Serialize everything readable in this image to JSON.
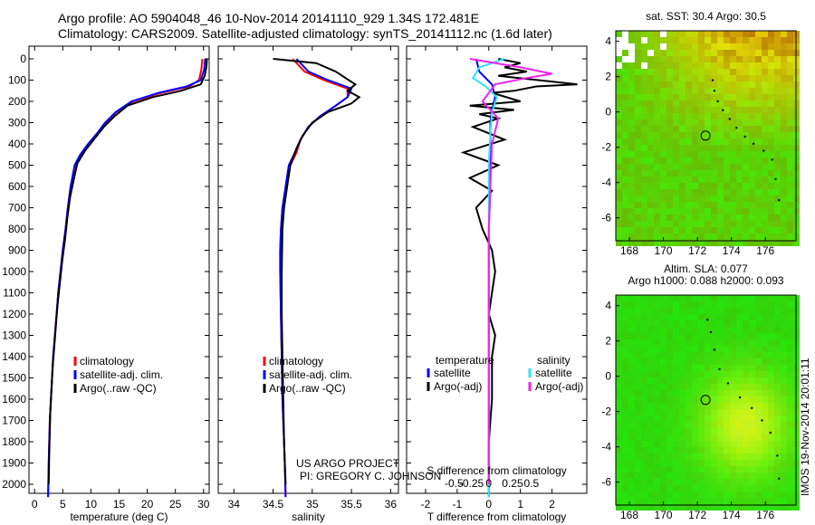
{
  "header": {
    "line1": "Argo profile: AO 5904048_46 10-Nov-2014 20141110_929 1.34S 172.481E",
    "line2": "Climatology: CARS2009. Satellite-adjusted climatology: synTS_20141112.nc (1.6d later)"
  },
  "footer": {
    "project": "US ARGO PROJECT",
    "pi": "PI: GREGORY C. JOHNSON",
    "timestamp": "IMOS 19-Nov-2014 20:01:11"
  },
  "colors": {
    "climatology": "#ff0000",
    "satellite": "#0000ff",
    "argo": "#000000",
    "sal_satellite": "#33e0ff",
    "sal_argo": "#ee22ee"
  },
  "chart_data": [
    {
      "type": "line",
      "id": "temperature",
      "xlabel": "temperature (deg C)",
      "ylabel": "",
      "xlim": [
        -1,
        31
      ],
      "ylim": [
        2080,
        0
      ],
      "xticks": [
        0,
        5,
        10,
        15,
        20,
        25,
        30
      ],
      "yticks": [
        0,
        100,
        200,
        300,
        400,
        500,
        600,
        700,
        800,
        900,
        1000,
        1100,
        1200,
        1300,
        1400,
        1500,
        1600,
        1700,
        1800,
        1900,
        2000
      ],
      "legend": [
        "climatology",
        "satellite-adj. clim.",
        "Argo(..raw -QC)"
      ],
      "legend_position": "lower-left",
      "series": [
        {
          "name": "climatology",
          "color": "#ff0000",
          "x": [
            29.8,
            29.6,
            29.2,
            27.5,
            22.5,
            17.5,
            14.5,
            12.6,
            11.2,
            9.6,
            8.2,
            7.2,
            6.4,
            5.9,
            5.5,
            5.0,
            4.6,
            4.2,
            3.9,
            3.6,
            3.3,
            3.1,
            2.9,
            2.7,
            2.6,
            2.5,
            2.4
          ],
          "y": [
            0,
            50,
            100,
            130,
            160,
            200,
            250,
            300,
            350,
            400,
            450,
            500,
            600,
            700,
            800,
            900,
            1000,
            1100,
            1200,
            1300,
            1400,
            1500,
            1600,
            1700,
            1800,
            1900,
            2060
          ]
        },
        {
          "name": "satellite-adj. clim.",
          "color": "#0000ff",
          "x": [
            30.3,
            30.1,
            29.5,
            27.0,
            22.0,
            17.2,
            14.4,
            12.5,
            11.1,
            9.5,
            8.1,
            7.1,
            6.4,
            5.9,
            5.5,
            5.0,
            4.6,
            4.2,
            3.9,
            3.6,
            3.3,
            3.1,
            2.9,
            2.7,
            2.6,
            2.5,
            2.4
          ],
          "y": [
            0,
            50,
            100,
            130,
            160,
            200,
            250,
            300,
            350,
            400,
            450,
            500,
            600,
            700,
            800,
            900,
            1000,
            1100,
            1200,
            1300,
            1400,
            1500,
            1600,
            1700,
            1800,
            1900,
            2060
          ]
        },
        {
          "name": "Argo(..raw -QC)",
          "color": "#000000",
          "x": [
            30.6,
            30.5,
            30.2,
            29.5,
            26.0,
            21.0,
            16.5,
            14.2,
            12.3,
            10.8,
            9.0,
            7.6,
            7.0,
            6.3,
            5.8,
            5.4,
            4.9,
            4.5,
            4.1,
            3.8,
            3.5,
            3.2,
            3.0,
            2.8,
            2.7,
            2.6,
            2.5
          ],
          "y": [
            0,
            40,
            80,
            120,
            150,
            180,
            220,
            270,
            320,
            370,
            430,
            490,
            560,
            650,
            750,
            850,
            950,
            1050,
            1150,
            1250,
            1350,
            1450,
            1550,
            1650,
            1750,
            1850,
            2000
          ]
        }
      ]
    },
    {
      "type": "line",
      "id": "salinity",
      "xlabel": "salinity",
      "xlim": [
        33.8,
        36.1
      ],
      "ylim": [
        2080,
        0
      ],
      "xticks": [
        34,
        34.5,
        35,
        35.5,
        36
      ],
      "xtick_labels": [
        "34",
        "34.5",
        "35",
        "35.5",
        "36"
      ],
      "legend": [
        "climatology",
        "satellite-adj. clim.",
        "Argo(..raw -QC)"
      ],
      "legend_position": "lower-left",
      "series": [
        {
          "name": "climatology",
          "color": "#ff0000",
          "x": [
            34.75,
            34.9,
            35.15,
            35.45,
            35.45,
            35.3,
            35.1,
            34.95,
            34.85,
            34.8,
            34.72,
            34.67,
            34.62,
            34.6,
            34.59,
            34.59,
            34.6,
            34.61,
            34.62,
            34.63,
            34.64,
            34.65,
            34.66
          ],
          "y": [
            0,
            60,
            100,
            140,
            180,
            220,
            270,
            320,
            380,
            440,
            500,
            600,
            700,
            800,
            900,
            1000,
            1200,
            1400,
            1600,
            1700,
            1800,
            1900,
            2060
          ]
        },
        {
          "name": "satellite-adj. clim.",
          "color": "#0000ff",
          "x": [
            34.8,
            34.95,
            35.2,
            35.5,
            35.45,
            35.3,
            35.1,
            34.95,
            34.85,
            34.78,
            34.7,
            34.66,
            34.62,
            34.6,
            34.59,
            34.59,
            34.6,
            34.61,
            34.62,
            34.63,
            34.64,
            34.65,
            34.66
          ],
          "y": [
            0,
            60,
            100,
            140,
            180,
            220,
            270,
            320,
            380,
            440,
            500,
            600,
            700,
            800,
            900,
            1000,
            1200,
            1400,
            1600,
            1700,
            1800,
            1900,
            2060
          ]
        },
        {
          "name": "Argo(..raw -QC)",
          "color": "#000000",
          "x": [
            34.5,
            35.05,
            35.3,
            35.55,
            35.45,
            35.6,
            35.5,
            35.2,
            35.0,
            34.88,
            34.8,
            34.72,
            34.68,
            34.64,
            34.62,
            34.61,
            34.61,
            34.62,
            34.63,
            34.64,
            34.65,
            34.66
          ],
          "y": [
            0,
            20,
            60,
            120,
            150,
            180,
            210,
            250,
            300,
            360,
            420,
            500,
            600,
            700,
            800,
            1000,
            1200,
            1400,
            1600,
            1800,
            1900,
            2000
          ]
        }
      ]
    },
    {
      "type": "line",
      "id": "difference",
      "xlabel": "T difference from climatology",
      "xlabel_top": "S difference from climatology",
      "xlim": [
        -2.6,
        3.1
      ],
      "ylim": [
        2080,
        0
      ],
      "xticks": [
        -2,
        -1,
        0,
        1,
        2
      ],
      "xtick_labels": [
        "-2",
        "-1",
        "0",
        "1",
        "2"
      ],
      "sticks": [
        -1.1,
        -0.55,
        0,
        0.75,
        1.35
      ],
      "stick_labels": [
        "-0.5",
        "-0.25",
        "0",
        "0.25",
        "0.5"
      ],
      "legend_groups": [
        {
          "title": "temperature",
          "items": [
            "satellite",
            "Argo(-adj)"
          ]
        },
        {
          "title": "salinity",
          "items": [
            "satellite",
            "Argo(-adj)"
          ]
        }
      ],
      "series": [
        {
          "name": "temperature satellite",
          "color": "#0000ff",
          "x": [
            -0.4,
            -0.3,
            0.1,
            0.2,
            0.1,
            0.05,
            0.05,
            0.05,
            0.0,
            0.0,
            0.0,
            0.0,
            0.0,
            0.0
          ],
          "y": [
            0,
            60,
            120,
            180,
            240,
            300,
            400,
            600,
            800,
            1000,
            1300,
            1600,
            1900,
            2060
          ]
        },
        {
          "name": "temperature Argo(-adj)",
          "color": "#000000",
          "x": [
            0.3,
            1.0,
            0.5,
            1.2,
            0.3,
            2.8,
            1.5,
            0.8,
            0.1,
            1.0,
            -0.6,
            0.8,
            -0.3,
            0.3,
            -0.5,
            0.5,
            -0.8,
            0.3,
            -0.6,
            0.1,
            -0.4,
            -0.2,
            0.1,
            0.2,
            0.1,
            0.0,
            0.2,
            0.1,
            0.1,
            0.0,
            0.0
          ],
          "y": [
            0,
            20,
            40,
            60,
            80,
            120,
            130,
            150,
            160,
            200,
            220,
            240,
            260,
            280,
            320,
            380,
            440,
            500,
            560,
            620,
            700,
            800,
            900,
            1000,
            1100,
            1200,
            1300,
            1400,
            1600,
            1800,
            2000
          ]
        },
        {
          "name": "salinity satellite",
          "color": "#33e0ff",
          "x": [
            0.5,
            -0.3,
            -0.5,
            -0.1,
            0.25,
            0.1,
            0.05,
            0.0,
            0.0,
            0.0,
            0.0,
            0.0
          ],
          "y": [
            0,
            40,
            90,
            130,
            180,
            250,
            350,
            500,
            700,
            1000,
            1500,
            2060
          ]
        },
        {
          "name": "salinity Argo(-adj)",
          "color": "#ee22ee",
          "x": [
            -0.6,
            1.0,
            2.0,
            1.2,
            0.2,
            -0.2,
            0.3,
            0.1,
            0.05,
            0.0,
            0.0,
            0.0,
            0.0,
            0.0
          ],
          "y": [
            0,
            40,
            70,
            90,
            120,
            200,
            280,
            400,
            600,
            800,
            1100,
            1400,
            1700,
            2000
          ]
        }
      ]
    },
    {
      "type": "heatmap",
      "id": "sst-map",
      "title": "sat. SST: 30.4  Argo: 30.5",
      "xlim": [
        167.2,
        177.8
      ],
      "ylim": [
        -7.3,
        4.6
      ],
      "xticks": [
        168,
        170,
        172,
        174,
        176
      ],
      "yticks": [
        4,
        2,
        0,
        -2,
        -4,
        -6
      ],
      "marker": {
        "lon": 172.48,
        "lat": -1.34
      },
      "track": [
        [
          172.9,
          1.8
        ],
        [
          173.0,
          1.2
        ],
        [
          173.2,
          0.6
        ],
        [
          173.5,
          0.1
        ],
        [
          173.9,
          -0.4
        ],
        [
          174.3,
          -0.9
        ],
        [
          174.8,
          -1.4
        ],
        [
          175.3,
          -1.8
        ],
        [
          175.9,
          -2.2
        ],
        [
          176.4,
          -2.7
        ],
        [
          176.6,
          -3.8
        ],
        [
          176.8,
          -5.0
        ]
      ]
    },
    {
      "type": "heatmap",
      "id": "sla-map",
      "title": "Altim. SLA: 0.077",
      "subtitle": "Argo h1000: 0.088 h2000: 0.093",
      "xlim": [
        167.2,
        177.8
      ],
      "ylim": [
        -7.3,
        4.6
      ],
      "xticks": [
        168,
        170,
        172,
        174,
        176
      ],
      "yticks": [
        4,
        2,
        0,
        -2,
        -4,
        -6
      ],
      "marker": {
        "lon": 172.48,
        "lat": -1.34
      },
      "track": [
        [
          172.6,
          3.2
        ],
        [
          172.8,
          2.5
        ],
        [
          173.0,
          1.5
        ],
        [
          173.3,
          0.4
        ],
        [
          173.8,
          -0.4
        ],
        [
          174.5,
          -1.2
        ],
        [
          175.2,
          -1.8
        ],
        [
          175.8,
          -2.5
        ],
        [
          176.3,
          -3.2
        ],
        [
          176.7,
          -4.5
        ],
        [
          176.8,
          -5.8
        ]
      ]
    }
  ]
}
